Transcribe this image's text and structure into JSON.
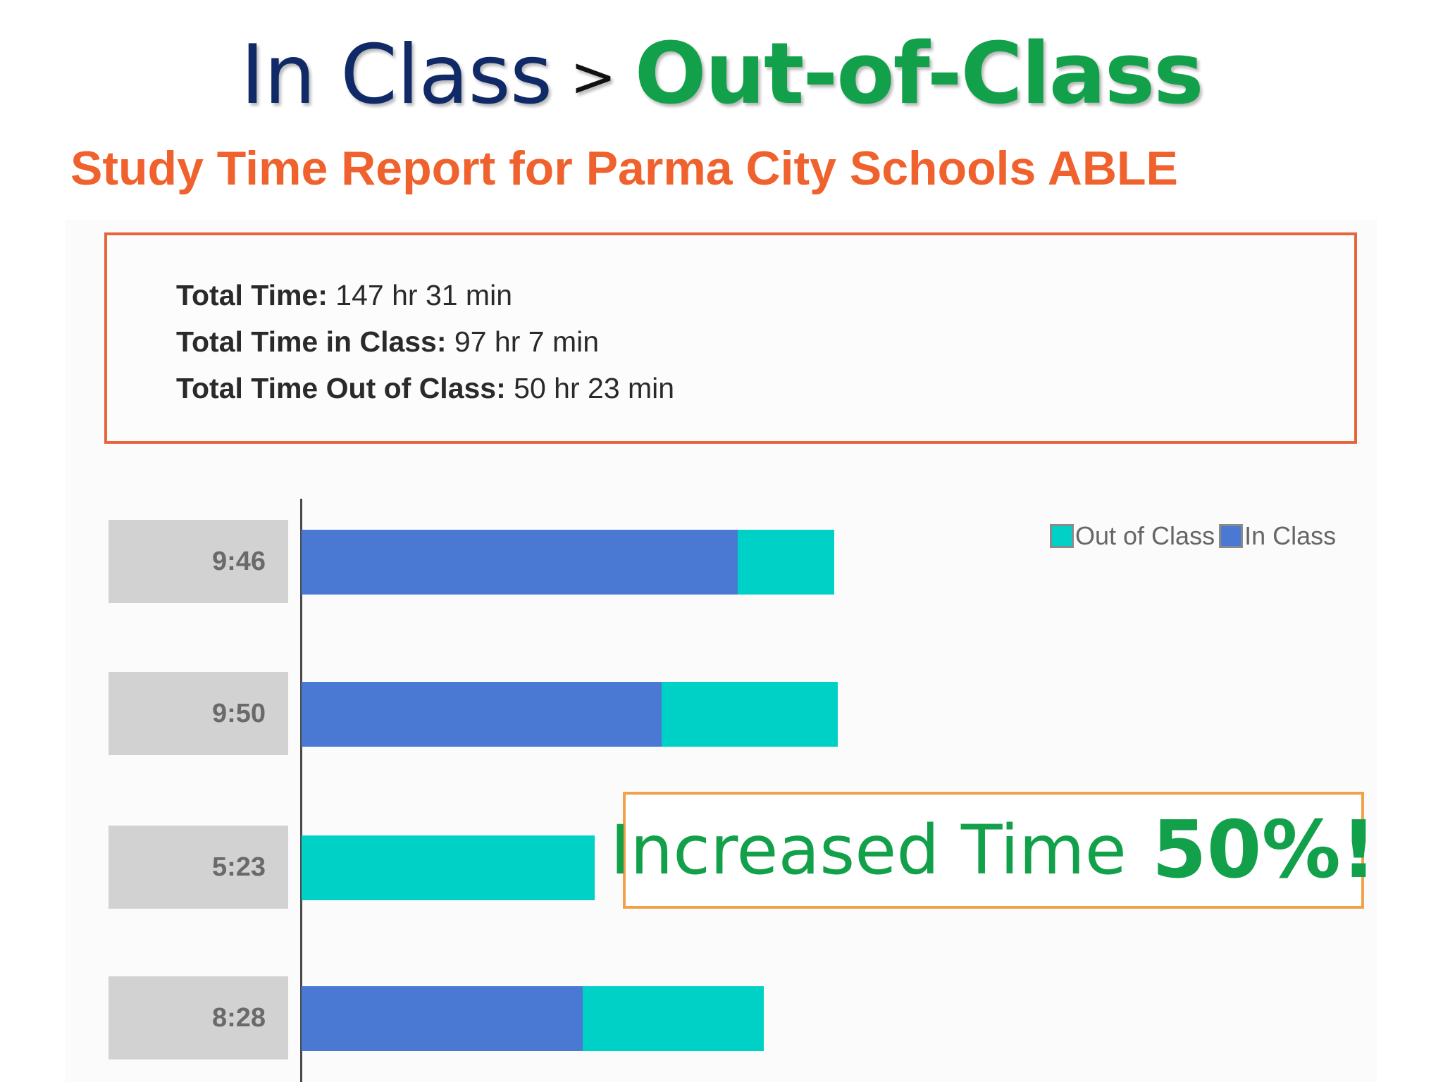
{
  "slide": {
    "title_part_1": "In Class",
    "title_separator": ">",
    "title_part_2": "Out-of-Class",
    "report_heading": "Study Time Report for Parma City Schools ABLE"
  },
  "summary": [
    {
      "label": "Total Time:",
      "value": "147 hr 31 min"
    },
    {
      "label": "Total Time in Class:",
      "value": "97 hr 7 min"
    },
    {
      "label": "Total Time Out of Class:",
      "value": "50 hr 23 min"
    }
  ],
  "callout": {
    "text": "Increased Time",
    "emphasis": "50%!"
  },
  "colors": {
    "in_class": "#4a79d4",
    "out_of_class": "#00d1c7",
    "title_dark": "#0f2a66",
    "title_green": "#12a14a",
    "heading_orange": "#f0622d"
  },
  "chart_data": {
    "type": "bar",
    "orientation": "horizontal",
    "stacked": true,
    "categories": [
      "9:46",
      "9:50",
      "5:23",
      "8:28"
    ],
    "series": [
      {
        "name": "In Class",
        "values": [
          8.0,
          6.6,
          0.0,
          5.15
        ]
      },
      {
        "name": "Out of Class",
        "values": [
          1.77,
          3.23,
          5.38,
          3.32
        ]
      }
    ],
    "legend": [
      "Out of Class",
      "In Class"
    ],
    "legend_position": "top-right",
    "grid": false
  }
}
